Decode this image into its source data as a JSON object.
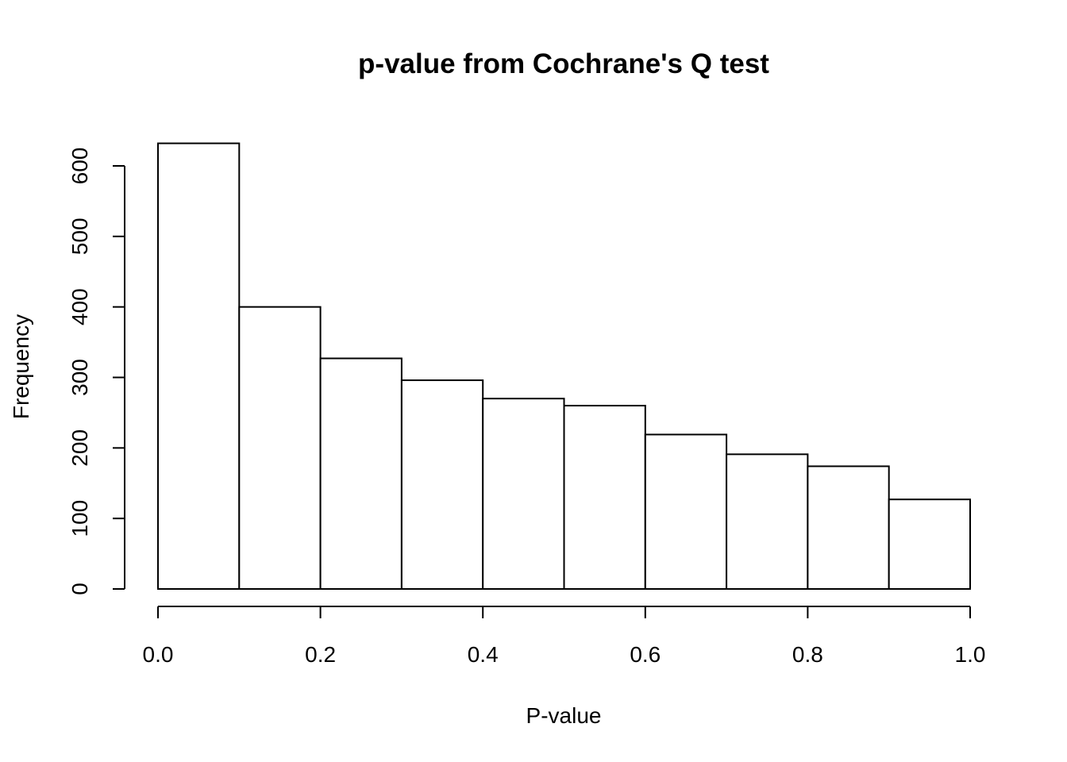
{
  "chart_data": {
    "type": "bar",
    "title": "p-value from Cochrane's Q test",
    "xlabel": "P-value",
    "ylabel": "Frequency",
    "bin_edges": [
      0.0,
      0.1,
      0.2,
      0.3,
      0.4,
      0.5,
      0.6,
      0.7,
      0.8,
      0.9,
      1.0
    ],
    "values": [
      632,
      400,
      327,
      296,
      270,
      260,
      219,
      191,
      174,
      127
    ],
    "xlim": [
      0,
      1
    ],
    "ylim": [
      0,
      600
    ],
    "x_ticks": [
      0.0,
      0.2,
      0.4,
      0.6,
      0.8,
      1.0
    ],
    "x_tick_labels": [
      "0.0",
      "0.2",
      "0.4",
      "0.6",
      "0.8",
      "1.0"
    ],
    "y_ticks": [
      0,
      100,
      200,
      300,
      400,
      500,
      600
    ],
    "y_tick_labels": [
      "0",
      "100",
      "200",
      "300",
      "400",
      "500",
      "600"
    ],
    "grid": false,
    "bar_fill": "#ffffff",
    "bar_stroke": "#000000"
  }
}
